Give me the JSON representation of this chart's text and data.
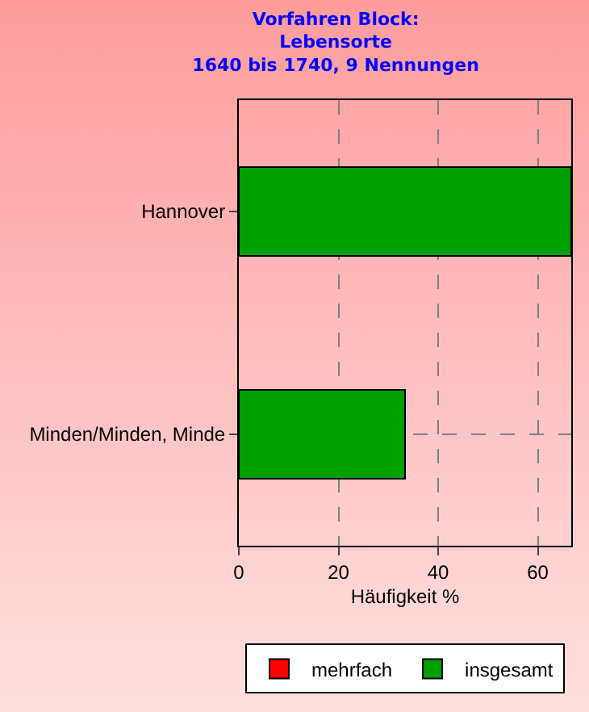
{
  "chart_data": {
    "type": "bar",
    "orientation": "horizontal",
    "stacked": true,
    "title": "Vorfahren Block:\nLebensorte\n1640 bis 1740, 9 Nennungen",
    "xlabel": "Häufigkeit %",
    "categories": [
      "Hannover",
      "Minden/Minden, Minde"
    ],
    "series": [
      {
        "name": "mehrfach",
        "color": "#ff0000",
        "values": [
          0,
          0
        ]
      },
      {
        "name": "insgesamt",
        "color": "#00a000",
        "values": [
          66.7,
          33.3
        ]
      }
    ],
    "xlim": [
      0,
      66.7
    ],
    "xticks": [
      0,
      20,
      40,
      60
    ],
    "grid": true,
    "legend": "bottom"
  }
}
